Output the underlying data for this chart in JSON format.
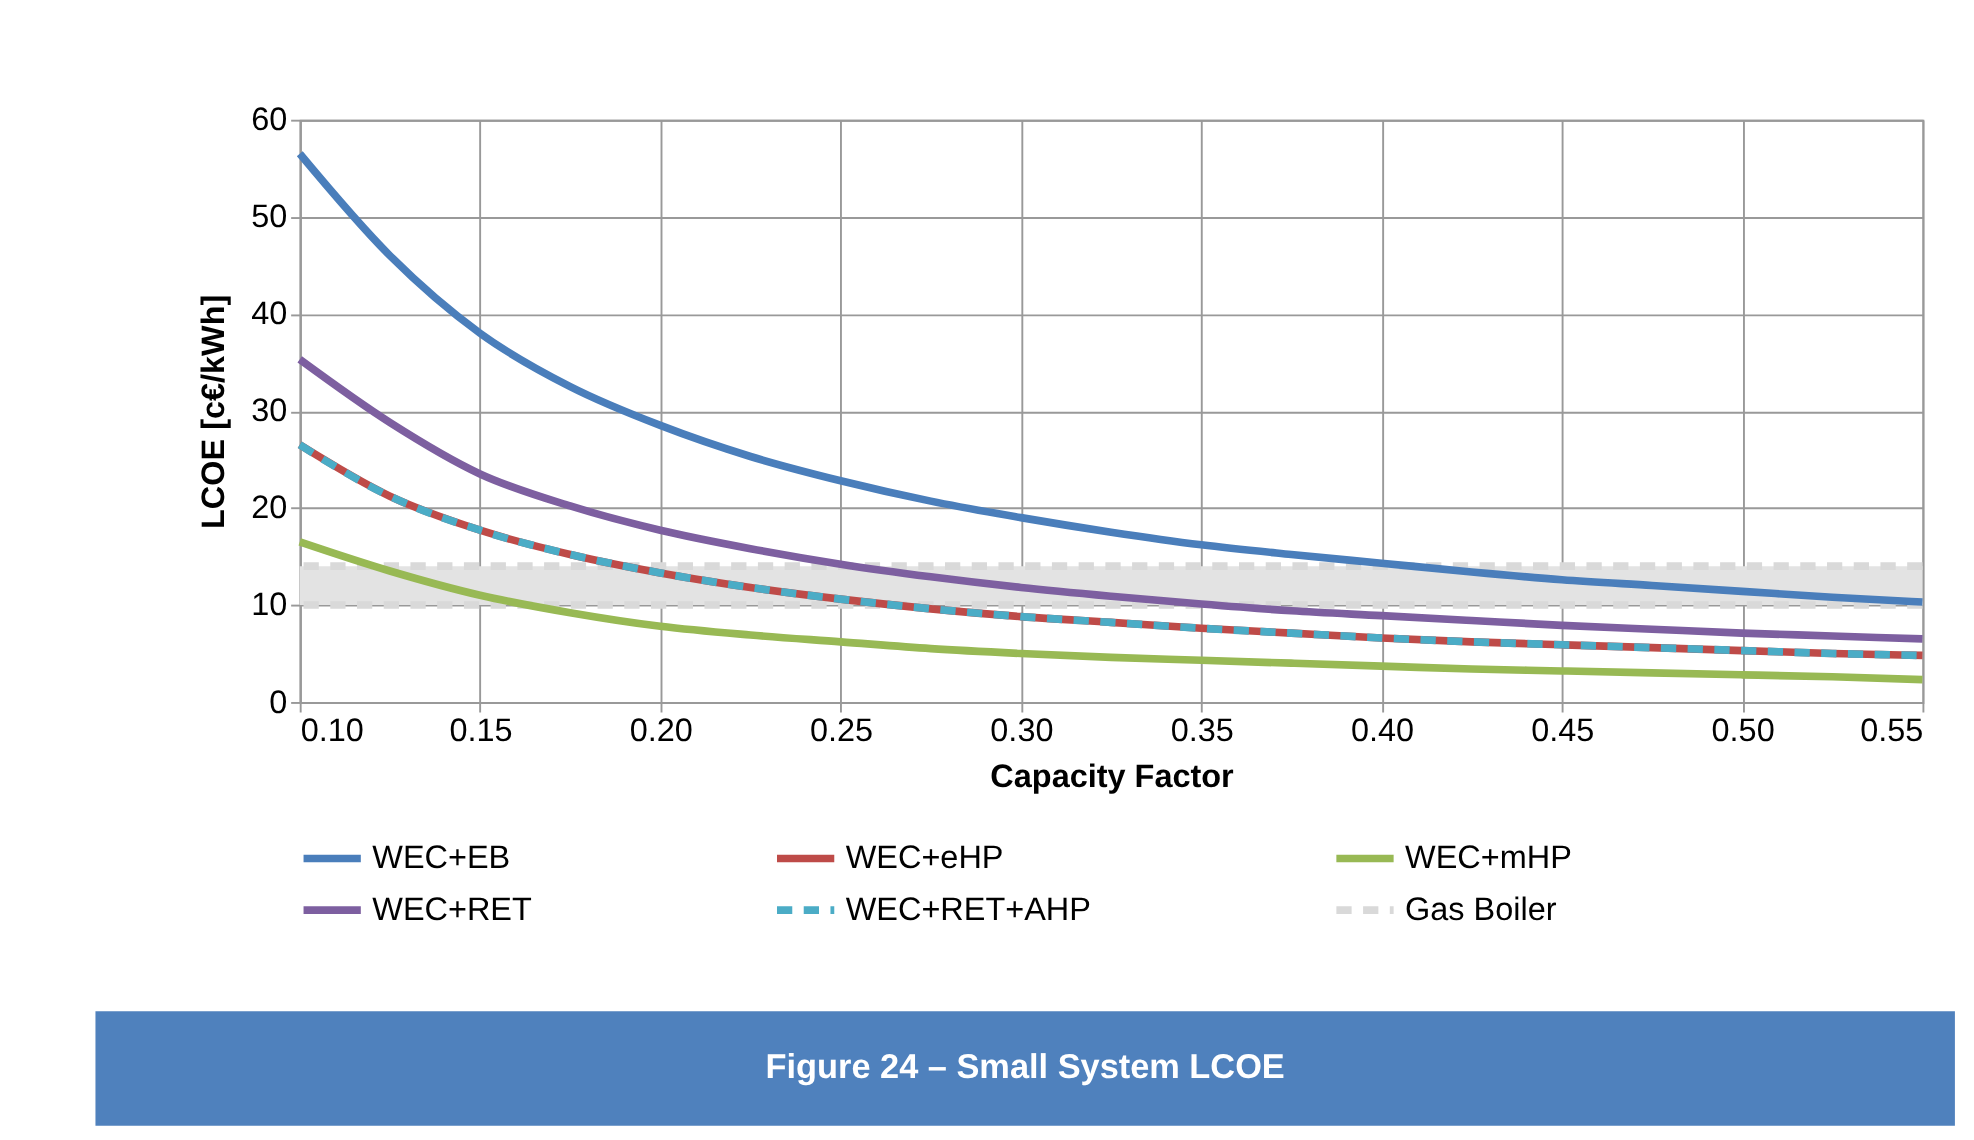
{
  "chart_data": {
    "type": "line",
    "title": "Figure 24 – Small System LCOE",
    "xlabel": "Capacity Factor",
    "ylabel": "LCOE [c€/kWh]",
    "x": [
      0.1,
      0.125,
      0.15,
      0.175,
      0.2,
      0.225,
      0.25,
      0.275,
      0.3,
      0.325,
      0.35,
      0.375,
      0.4,
      0.425,
      0.45,
      0.475,
      0.5,
      0.525,
      0.55
    ],
    "series": [
      {
        "name": "WEC+EB",
        "color": "#4a7ebb",
        "line_style": "solid",
        "values": [
          56.5,
          46,
          38,
          32.5,
          28.5,
          25.3,
          22.8,
          20.7,
          19,
          17.5,
          16.2,
          15.2,
          14.3,
          13.4,
          12.6,
          12,
          11.4,
          10.8,
          10.3
        ]
      },
      {
        "name": "WEC+eHP",
        "color": "#be4b48",
        "line_style": "solid",
        "values": [
          26.5,
          21.2,
          17.7,
          15.2,
          13.3,
          11.8,
          10.6,
          9.6,
          8.8,
          8.2,
          7.6,
          7.1,
          6.6,
          6.2,
          5.9,
          5.6,
          5.3,
          5.0,
          4.8
        ]
      },
      {
        "name": "WEC+mHP",
        "color": "#98b954",
        "line_style": "solid",
        "values": [
          16.5,
          13.5,
          11,
          9.2,
          7.8,
          6.9,
          6.2,
          5.5,
          5.0,
          4.6,
          4.3,
          4.0,
          3.7,
          3.4,
          3.2,
          3.0,
          2.8,
          2.6,
          2.3
        ]
      },
      {
        "name": "WEC+RET",
        "color": "#7d5fa0",
        "line_style": "solid",
        "values": [
          35.3,
          28.8,
          23.5,
          20.2,
          17.7,
          15.8,
          14.2,
          12.9,
          11.8,
          10.9,
          10.1,
          9.4,
          8.9,
          8.4,
          7.9,
          7.5,
          7.1,
          6.8,
          6.5
        ]
      },
      {
        "name": "WEC+RET+AHP",
        "color": "#4bacc6",
        "line_style": "dashed",
        "values": [
          26.5,
          21.2,
          17.7,
          15.2,
          13.3,
          11.8,
          10.6,
          9.6,
          8.8,
          8.2,
          7.6,
          7.1,
          6.6,
          6.2,
          5.9,
          5.6,
          5.3,
          5.0,
          4.8
        ]
      }
    ],
    "bands": [
      {
        "axis": "y",
        "from": 10,
        "to": 14,
        "color": "#e3e3e3"
      }
    ],
    "ref_lines": [
      {
        "axis": "y",
        "value": 10,
        "label": "Gas Boiler",
        "color": "#d9d9d9",
        "line_style": "dashed"
      },
      {
        "axis": "y",
        "value": 14,
        "color": "#d9d9d9",
        "line_style": "dashed"
      }
    ],
    "xlim": [
      0.1,
      0.55
    ],
    "xticks": [
      {
        "value": 0.1,
        "label": "0.10"
      },
      {
        "value": 0.15,
        "label": "0.15"
      },
      {
        "value": 0.2,
        "label": "0.20"
      },
      {
        "value": 0.25,
        "label": "0.25"
      },
      {
        "value": 0.3,
        "label": "0.30"
      },
      {
        "value": 0.35,
        "label": "0.35"
      },
      {
        "value": 0.4,
        "label": "0.40"
      },
      {
        "value": 0.45,
        "label": "0.45"
      },
      {
        "value": 0.5,
        "label": "0.50"
      },
      {
        "value": 0.55,
        "label": "0.55"
      }
    ],
    "ylim": [
      0,
      60
    ],
    "yticks": [
      0,
      10,
      20,
      30,
      40,
      50,
      60
    ],
    "grid": true,
    "legend": "bottom",
    "marker": "none"
  }
}
